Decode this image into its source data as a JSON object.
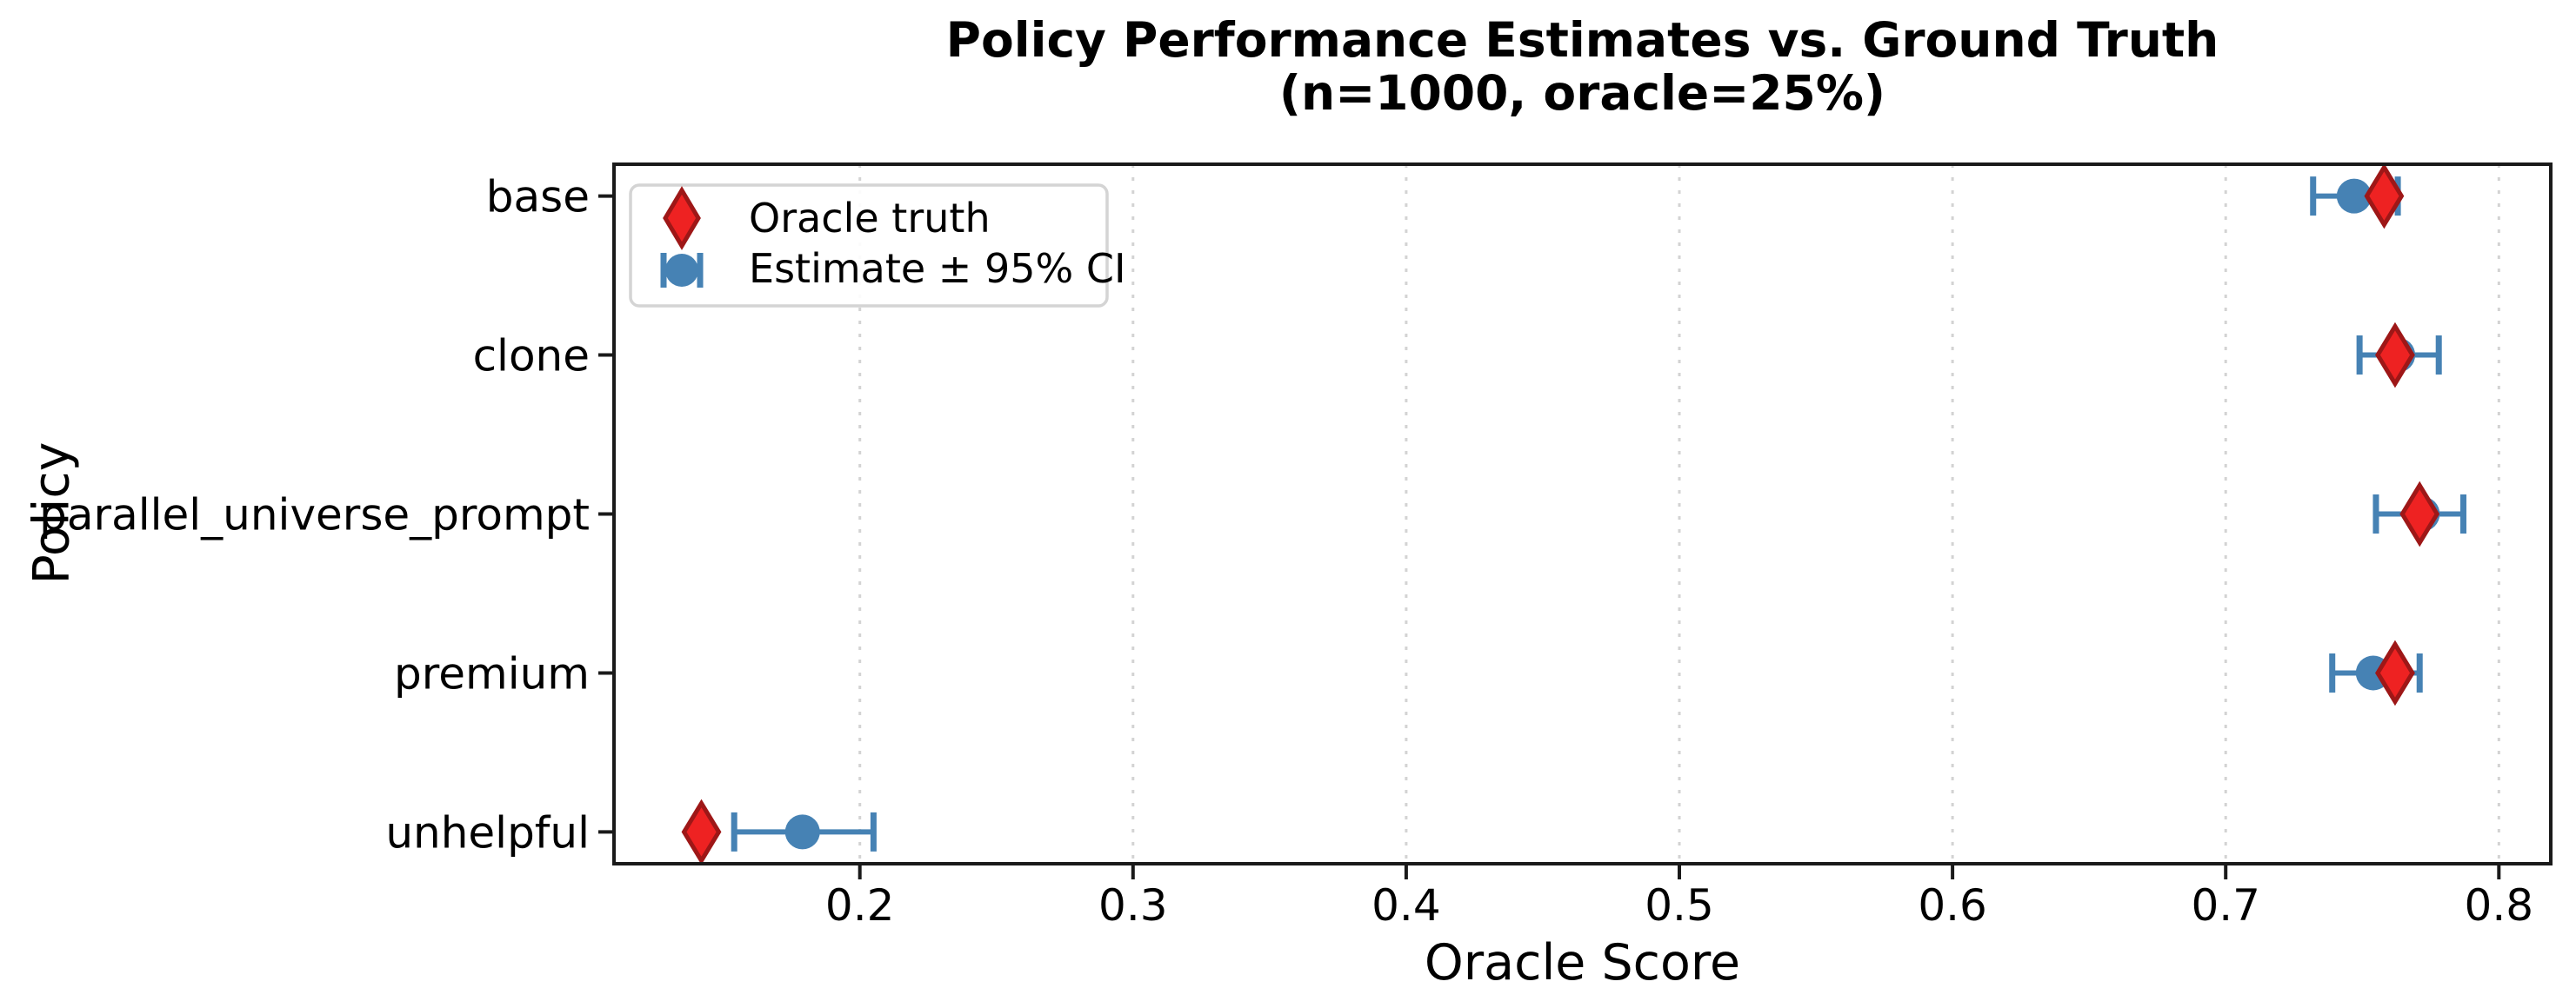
{
  "chart_data": {
    "type": "scatter",
    "title_line1": "Policy Performance Estimates vs. Ground Truth",
    "title_line2": "(n=1000, oracle=25%)",
    "xlabel": "Oracle Score",
    "ylabel": "Policy",
    "categories": [
      "base",
      "clone",
      "parallel_universe_prompt",
      "premium",
      "unhelpful"
    ],
    "series": [
      {
        "name": "Oracle truth",
        "marker": "thin-diamond",
        "values": [
          0.758,
          0.762,
          0.771,
          0.762,
          0.142
        ]
      },
      {
        "name": "Estimate ± 95% CI",
        "marker": "circle-with-errorbar",
        "values": [
          0.747,
          0.763,
          0.772,
          0.754,
          0.179
        ],
        "ci_low": [
          0.732,
          0.749,
          0.755,
          0.739,
          0.154
        ],
        "ci_high": [
          0.763,
          0.778,
          0.787,
          0.771,
          0.205
        ]
      }
    ],
    "xticks": [
      0.2,
      0.3,
      0.4,
      0.5,
      0.6,
      0.7,
      0.8
    ],
    "xtick_labels": [
      "0.2",
      "0.3",
      "0.4",
      "0.5",
      "0.6",
      "0.7",
      "0.8"
    ],
    "xlim": [
      0.11,
      0.819
    ],
    "grid": "vertical-dotted",
    "legend_position": "upper-left",
    "legend_labels": [
      "Oracle truth",
      "Estimate ± 95% CI"
    ],
    "colors": {
      "estimate_blue": "#4682b4",
      "truth_red_fill": "#ee2222",
      "truth_red_edge": "#9e1717",
      "grid_gray": "#d3d3d3",
      "spine_black": "#1a1a1a",
      "text_black": "#000000",
      "legend_border": "#d4d4d4",
      "background": "#ffffff"
    }
  }
}
